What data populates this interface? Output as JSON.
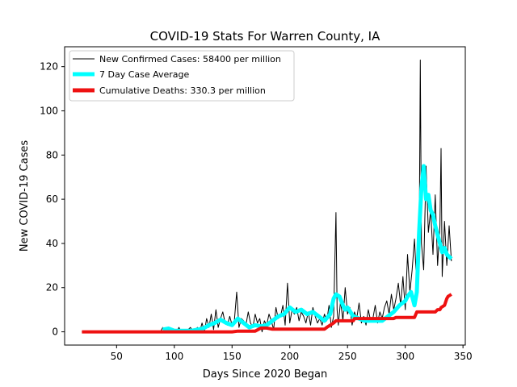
{
  "chart_data": {
    "type": "line",
    "title": "COVID-19 Stats For Warren County, IA",
    "xlabel": "Days Since 2020 Began",
    "ylabel": "New COVID-19 Cases",
    "xlim": [
      5,
      352
    ],
    "ylim": [
      -6,
      129
    ],
    "xticks": [
      50,
      100,
      150,
      200,
      250,
      300,
      350
    ],
    "yticks": [
      0,
      20,
      40,
      60,
      80,
      100,
      120
    ],
    "grid": false,
    "legend_position": "top-left",
    "series": [
      {
        "name": "New Confirmed Cases: 58400 per million",
        "color": "#000000",
        "x": [
          20,
          40,
          60,
          80,
          88,
          90,
          92,
          94,
          96,
          98,
          100,
          102,
          104,
          106,
          108,
          110,
          112,
          114,
          116,
          118,
          120,
          122,
          124,
          126,
          128,
          130,
          132,
          134,
          136,
          138,
          140,
          142,
          144,
          146,
          148,
          150,
          152,
          154,
          156,
          158,
          160,
          162,
          164,
          166,
          168,
          170,
          172,
          174,
          176,
          178,
          180,
          182,
          184,
          186,
          188,
          190,
          192,
          194,
          196,
          198,
          200,
          202,
          204,
          206,
          208,
          210,
          212,
          214,
          216,
          218,
          220,
          222,
          224,
          226,
          228,
          230,
          232,
          234,
          236,
          238,
          240,
          241,
          242,
          244,
          246,
          248,
          250,
          252,
          254,
          256,
          258,
          260,
          262,
          264,
          266,
          268,
          270,
          272,
          274,
          276,
          278,
          280,
          282,
          284,
          286,
          288,
          290,
          292,
          294,
          296,
          298,
          300,
          302,
          304,
          306,
          308,
          310,
          312,
          313,
          314,
          316,
          318,
          320,
          322,
          324,
          326,
          328,
          330,
          331,
          332,
          334,
          336,
          338,
          340
        ],
        "y": [
          0,
          0,
          0,
          0,
          0,
          2,
          0,
          1,
          2,
          0,
          1,
          0,
          2,
          0,
          1,
          0,
          1,
          2,
          0,
          1,
          2,
          0,
          4,
          0,
          6,
          2,
          8,
          1,
          10,
          2,
          6,
          9,
          4,
          3,
          7,
          3,
          5,
          18,
          2,
          6,
          5,
          3,
          9,
          4,
          2,
          8,
          4,
          6,
          0,
          5,
          3,
          8,
          5,
          1,
          11,
          6,
          7,
          12,
          3,
          22,
          4,
          10,
          8,
          11,
          5,
          9,
          7,
          4,
          9,
          3,
          11,
          7,
          4,
          6,
          3,
          8,
          5,
          12,
          2,
          7,
          54,
          10,
          3,
          14,
          5,
          20,
          8,
          11,
          3,
          9,
          6,
          13,
          4,
          7,
          3,
          10,
          5,
          6,
          12,
          4,
          9,
          6,
          11,
          14,
          8,
          17,
          10,
          15,
          22,
          12,
          25,
          10,
          35,
          18,
          28,
          42,
          20,
          30,
          123,
          40,
          28,
          75,
          45,
          55,
          35,
          62,
          30,
          48,
          83,
          25,
          50,
          30,
          48,
          32
        ],
        "width": 1
      },
      {
        "name": "7 Day Case Average",
        "color": "#00ffff",
        "x": [
          90,
          95,
          100,
          105,
          110,
          115,
          120,
          125,
          130,
          135,
          140,
          145,
          150,
          155,
          160,
          165,
          170,
          175,
          180,
          185,
          190,
          195,
          200,
          205,
          210,
          215,
          220,
          225,
          230,
          235,
          238,
          240,
          243,
          246,
          248,
          250,
          255,
          260,
          265,
          270,
          275,
          280,
          285,
          290,
          295,
          300,
          302,
          305,
          308,
          310,
          312,
          314,
          316,
          318,
          320,
          322,
          324,
          326,
          328,
          330,
          332,
          334,
          336,
          338,
          340
        ],
        "y": [
          1,
          1.5,
          0.5,
          0.5,
          0.5,
          0.5,
          1,
          1.5,
          3,
          4,
          5.5,
          4,
          3,
          6,
          4,
          2,
          3,
          2.5,
          3,
          5,
          7,
          8,
          11,
          9,
          10,
          8,
          9,
          7,
          5,
          8,
          15,
          17,
          16,
          12,
          10,
          11,
          7,
          6,
          5,
          5,
          5,
          5,
          7,
          9,
          12,
          14,
          16,
          18,
          12,
          18,
          45,
          65,
          75,
          60,
          62,
          55,
          53,
          48,
          44,
          40,
          36,
          38,
          35,
          34,
          33
        ],
        "width": 5
      },
      {
        "name": "Cumulative Deaths: 330.3 per million",
        "color": "#ee1111",
        "x": [
          20,
          150,
          155,
          170,
          175,
          180,
          185,
          190,
          230,
          232,
          235,
          238,
          240,
          255,
          256,
          290,
          292,
          300,
          308,
          310,
          320,
          326,
          328,
          330,
          331,
          334,
          336,
          337,
          340
        ],
        "y": [
          0,
          0,
          0.3,
          0.3,
          1.7,
          1.7,
          1.2,
          1.2,
          1.2,
          2,
          3,
          4,
          5,
          5,
          6,
          6,
          6.5,
          6.5,
          6.5,
          9,
          9,
          9,
          10,
          10,
          11,
          12,
          15,
          16,
          17
        ],
        "width": 4
      }
    ]
  }
}
